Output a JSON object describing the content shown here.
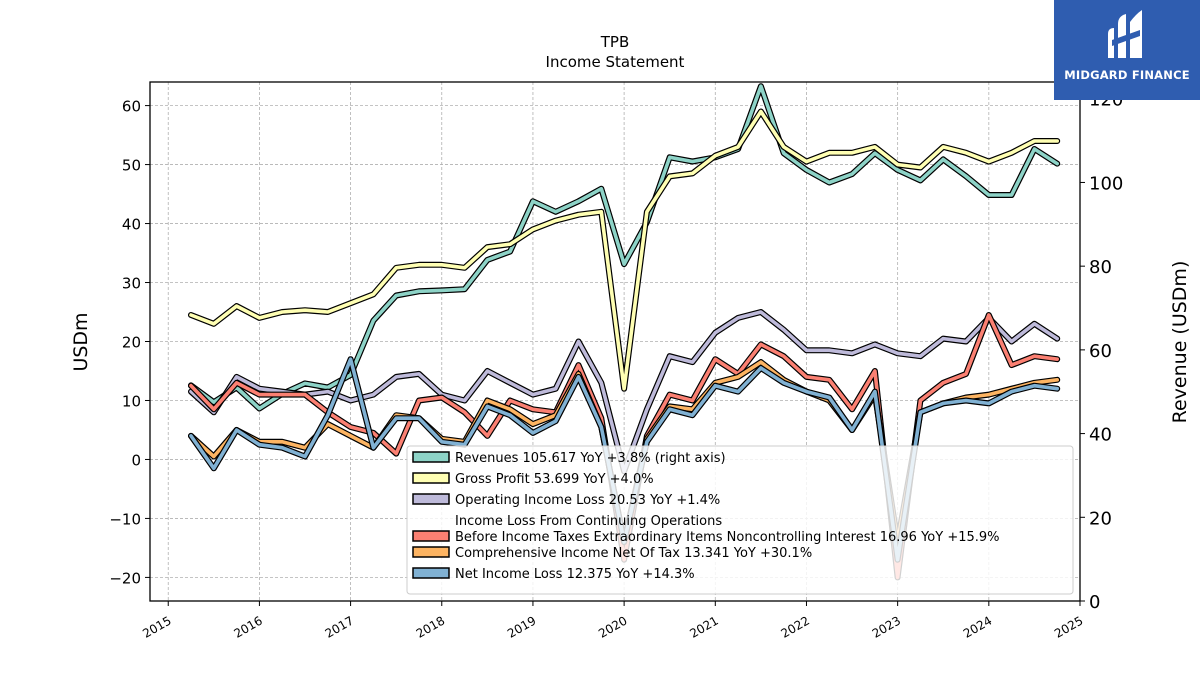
{
  "logo": {
    "text": "MIDGARD FINANCE"
  },
  "chart_data": {
    "type": "line",
    "title": "TPB",
    "subtitle": "Income Statement",
    "ylabel": "USDm",
    "ylabel_right": "Revenue (USDm)",
    "ylim": [
      -24,
      64
    ],
    "ylim_right": [
      0,
      124
    ],
    "yticks": [
      -20,
      -10,
      0,
      10,
      20,
      30,
      40,
      50,
      60
    ],
    "yticks_right": [
      0,
      20,
      40,
      60,
      80,
      100,
      120
    ],
    "xlim": [
      2014.8,
      2025.0
    ],
    "xticks": [
      2015,
      2016,
      2017,
      2018,
      2019,
      2020,
      2021,
      2022,
      2023,
      2024,
      2025
    ],
    "grid": true,
    "legend_position": "lower-right",
    "x": [
      2015.25,
      2015.5,
      2015.75,
      2016.0,
      2016.25,
      2016.5,
      2016.75,
      2017.0,
      2017.25,
      2017.5,
      2017.75,
      2018.0,
      2018.25,
      2018.5,
      2018.75,
      2019.0,
      2019.25,
      2019.5,
      2019.75,
      2020.0,
      2020.25,
      2020.5,
      2020.75,
      2021.0,
      2021.25,
      2021.5,
      2021.75,
      2022.0,
      2022.25,
      2022.5,
      2022.75,
      2023.0,
      2023.25,
      2023.5,
      2023.75,
      2024.0,
      2024.25,
      2024.5,
      2024.75
    ],
    "series": [
      {
        "name": "Revenues  105.617 YoY +3.8% (right axis)",
        "axis": "right",
        "color": "#8dd3c7",
        "values": [
          51.5,
          47.5,
          51,
          46,
          49.5,
          52,
          51,
          54,
          67,
          73,
          74,
          74.2,
          74.5,
          81.5,
          83.5,
          95.5,
          93,
          95.5,
          98.5,
          80.5,
          90.5,
          106,
          105,
          106,
          108,
          123,
          107,
          103,
          100,
          102,
          107,
          103,
          100.5,
          105.5,
          101.5,
          97,
          97,
          108,
          104.5
        ]
      },
      {
        "name": "Gross Profit  53.699 YoY +4.0%",
        "axis": "left",
        "color": "#ffffb3",
        "values": [
          24.5,
          23,
          26,
          24,
          25,
          25.3,
          25,
          26.5,
          28,
          32.5,
          33,
          33,
          32.5,
          36,
          36.5,
          39,
          40.5,
          41.5,
          42,
          12,
          42,
          48,
          48.5,
          51.5,
          53,
          59,
          53,
          50.5,
          52,
          52,
          53,
          50,
          49.5,
          53,
          52,
          50.5,
          52,
          54,
          54
        ]
      },
      {
        "name": "Operating Income Loss  20.53 YoY +1.4%",
        "axis": "left",
        "color": "#bebada",
        "values": [
          11.5,
          8,
          14,
          12,
          11.5,
          11,
          11.5,
          10,
          11,
          14,
          14.5,
          11,
          10,
          15,
          13,
          11,
          12,
          20,
          13,
          -2,
          8.5,
          17.5,
          16.5,
          21.5,
          24,
          25,
          22,
          18.5,
          18.5,
          18,
          19.5,
          18,
          17.5,
          20.5,
          20,
          24,
          20,
          23,
          20.5
        ]
      },
      {
        "name": "Income Loss From Continuing Operations\nBefore Income Taxes Extraordinary Items Noncontrolling Interest  16.96 YoY +15.9%",
        "axis": "left",
        "color": "#fb8072",
        "values": [
          12.5,
          8.5,
          13,
          11,
          11,
          11,
          8,
          5.5,
          4.5,
          1,
          10,
          10.5,
          8,
          4,
          10,
          8.5,
          8,
          16,
          7,
          -17,
          4,
          11,
          10,
          17,
          14.5,
          19.5,
          17.5,
          14,
          13.5,
          8.5,
          15,
          -20,
          10,
          13,
          14.5,
          24.5,
          16,
          17.5,
          17
        ]
      },
      {
        "name": "Comprehensive Income Net Of Tax  13.341 YoY +30.1%",
        "axis": "left",
        "color": "#fdb462",
        "values": [
          4,
          0.5,
          5,
          3,
          3,
          2,
          6,
          4,
          2,
          7.5,
          7,
          3.5,
          3,
          10,
          8.5,
          6,
          7.5,
          14.5,
          5.5,
          -14,
          3.5,
          9,
          8.5,
          13,
          14,
          16.5,
          13.5,
          11.5,
          10,
          5,
          11,
          -14,
          8,
          9.5,
          10.5,
          11,
          12,
          13,
          13.5
        ]
      },
      {
        "name": "Net Income Loss  12.375 YoY +14.3%",
        "axis": "left",
        "color": "#80b1d3",
        "values": [
          4,
          -1.5,
          5,
          2.5,
          2,
          0.5,
          7.5,
          17,
          2,
          7,
          7,
          3,
          2.5,
          9,
          7.5,
          4.5,
          6.5,
          14,
          5.5,
          -14,
          3,
          8.5,
          7.5,
          12.5,
          11.5,
          15.5,
          13,
          11.5,
          10.5,
          5,
          11.5,
          -17,
          8,
          9.5,
          10,
          9.5,
          11.5,
          12.5,
          12
        ]
      }
    ]
  }
}
